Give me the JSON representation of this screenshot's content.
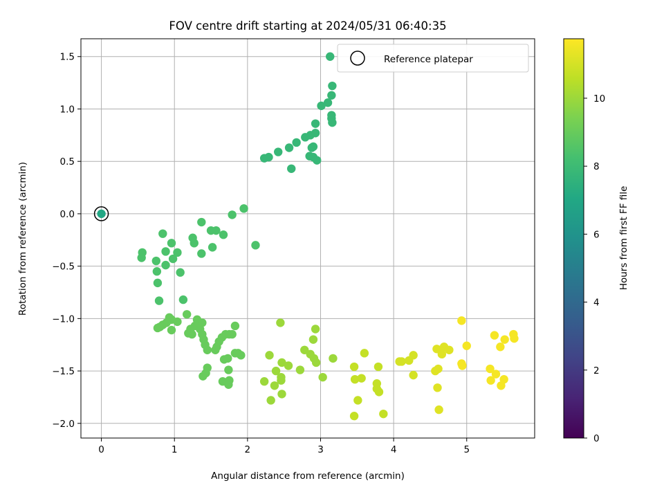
{
  "chart_data": {
    "type": "scatter",
    "title": "FOV centre drift starting at 2024/05/31 06:40:35",
    "xlabel": "Angular distance from reference (arcmin)",
    "ylabel": "Rotation from reference (arcmin)",
    "xlim": [
      -0.28,
      5.93
    ],
    "ylim": [
      -2.14,
      1.67
    ],
    "x_ticks": [
      0,
      1,
      2,
      3,
      4,
      5
    ],
    "y_ticks": [
      -2.0,
      -1.5,
      -1.0,
      -0.5,
      0.0,
      0.5,
      1.0,
      1.5
    ],
    "x_tick_labels": [
      "0",
      "1",
      "2",
      "3",
      "4",
      "5"
    ],
    "y_tick_labels": [
      "−2.0",
      "−1.5",
      "−1.0",
      "−0.5",
      "0.0",
      "0.5",
      "1.0",
      "1.5"
    ],
    "grid": true,
    "legend": {
      "position": "upper right",
      "entries": [
        "Reference platepar"
      ]
    },
    "reference_point": {
      "x": 0,
      "y": 0
    },
    "colorbar": {
      "label": "Hours from first FF file",
      "colormap": "viridis",
      "min": 0,
      "max": 11.75,
      "ticks": [
        0,
        2,
        4,
        6,
        8,
        10
      ],
      "tick_labels": [
        "0",
        "2",
        "4",
        "6",
        "8",
        "10"
      ]
    },
    "points": [
      {
        "x": 0.0,
        "y": 0.0,
        "h": 7.0
      },
      {
        "x": 3.13,
        "y": 1.5,
        "h": 7.8
      },
      {
        "x": 3.16,
        "y": 1.22,
        "h": 7.8
      },
      {
        "x": 3.15,
        "y": 1.13,
        "h": 7.8
      },
      {
        "x": 3.1,
        "y": 1.06,
        "h": 7.8
      },
      {
        "x": 3.01,
        "y": 1.03,
        "h": 7.8
      },
      {
        "x": 3.15,
        "y": 0.94,
        "h": 7.8
      },
      {
        "x": 3.15,
        "y": 0.91,
        "h": 7.8
      },
      {
        "x": 3.16,
        "y": 0.87,
        "h": 7.8
      },
      {
        "x": 2.93,
        "y": 0.86,
        "h": 7.8
      },
      {
        "x": 2.93,
        "y": 0.77,
        "h": 7.8
      },
      {
        "x": 2.86,
        "y": 0.75,
        "h": 7.8
      },
      {
        "x": 2.79,
        "y": 0.73,
        "h": 7.8
      },
      {
        "x": 2.67,
        "y": 0.68,
        "h": 7.8
      },
      {
        "x": 2.57,
        "y": 0.63,
        "h": 7.8
      },
      {
        "x": 2.88,
        "y": 0.63,
        "h": 7.8
      },
      {
        "x": 2.9,
        "y": 0.64,
        "h": 7.8
      },
      {
        "x": 2.42,
        "y": 0.59,
        "h": 7.8
      },
      {
        "x": 2.85,
        "y": 0.55,
        "h": 7.8
      },
      {
        "x": 2.9,
        "y": 0.54,
        "h": 7.8
      },
      {
        "x": 2.95,
        "y": 0.51,
        "h": 7.8
      },
      {
        "x": 2.29,
        "y": 0.54,
        "h": 7.8
      },
      {
        "x": 2.23,
        "y": 0.53,
        "h": 7.8
      },
      {
        "x": 2.6,
        "y": 0.43,
        "h": 7.8
      },
      {
        "x": 1.95,
        "y": 0.05,
        "h": 8.4
      },
      {
        "x": 1.79,
        "y": -0.01,
        "h": 8.4
      },
      {
        "x": 2.11,
        "y": -0.3,
        "h": 8.4
      },
      {
        "x": 1.37,
        "y": -0.08,
        "h": 8.4
      },
      {
        "x": 1.5,
        "y": -0.16,
        "h": 8.4
      },
      {
        "x": 1.57,
        "y": -0.16,
        "h": 8.4
      },
      {
        "x": 1.67,
        "y": -0.2,
        "h": 8.4
      },
      {
        "x": 1.52,
        "y": -0.32,
        "h": 8.4
      },
      {
        "x": 1.25,
        "y": -0.23,
        "h": 8.4
      },
      {
        "x": 1.27,
        "y": -0.28,
        "h": 8.4
      },
      {
        "x": 1.37,
        "y": -0.38,
        "h": 8.4
      },
      {
        "x": 0.84,
        "y": -0.19,
        "h": 8.4
      },
      {
        "x": 0.96,
        "y": -0.28,
        "h": 8.4
      },
      {
        "x": 0.88,
        "y": -0.36,
        "h": 8.4
      },
      {
        "x": 1.04,
        "y": -0.37,
        "h": 8.4
      },
      {
        "x": 0.98,
        "y": -0.43,
        "h": 8.4
      },
      {
        "x": 0.56,
        "y": -0.37,
        "h": 8.4
      },
      {
        "x": 0.55,
        "y": -0.42,
        "h": 8.4
      },
      {
        "x": 0.75,
        "y": -0.45,
        "h": 8.4
      },
      {
        "x": 0.88,
        "y": -0.49,
        "h": 8.4
      },
      {
        "x": 0.76,
        "y": -0.55,
        "h": 8.4
      },
      {
        "x": 1.08,
        "y": -0.56,
        "h": 8.4
      },
      {
        "x": 0.77,
        "y": -0.66,
        "h": 8.4
      },
      {
        "x": 1.12,
        "y": -0.82,
        "h": 8.4
      },
      {
        "x": 0.79,
        "y": -0.83,
        "h": 8.4
      },
      {
        "x": 1.17,
        "y": -0.96,
        "h": 9.0
      },
      {
        "x": 0.93,
        "y": -0.99,
        "h": 9.0
      },
      {
        "x": 0.96,
        "y": -1.01,
        "h": 9.0
      },
      {
        "x": 0.89,
        "y": -1.04,
        "h": 9.0
      },
      {
        "x": 1.04,
        "y": -1.03,
        "h": 9.0
      },
      {
        "x": 0.84,
        "y": -1.06,
        "h": 9.0
      },
      {
        "x": 0.8,
        "y": -1.08,
        "h": 9.0
      },
      {
        "x": 0.77,
        "y": -1.09,
        "h": 9.0
      },
      {
        "x": 0.96,
        "y": -1.11,
        "h": 9.0
      },
      {
        "x": 1.31,
        "y": -1.01,
        "h": 9.0
      },
      {
        "x": 1.38,
        "y": -1.04,
        "h": 9.0
      },
      {
        "x": 1.28,
        "y": -1.07,
        "h": 9.0
      },
      {
        "x": 1.22,
        "y": -1.1,
        "h": 9.0
      },
      {
        "x": 1.35,
        "y": -1.1,
        "h": 9.0
      },
      {
        "x": 1.19,
        "y": -1.14,
        "h": 9.0
      },
      {
        "x": 1.24,
        "y": -1.15,
        "h": 9.0
      },
      {
        "x": 1.38,
        "y": -1.15,
        "h": 9.0
      },
      {
        "x": 1.4,
        "y": -1.2,
        "h": 9.0
      },
      {
        "x": 1.42,
        "y": -1.25,
        "h": 9.0
      },
      {
        "x": 1.45,
        "y": -1.3,
        "h": 9.0
      },
      {
        "x": 1.56,
        "y": -1.3,
        "h": 9.0
      },
      {
        "x": 1.58,
        "y": -1.27,
        "h": 9.0
      },
      {
        "x": 1.61,
        "y": -1.22,
        "h": 9.0
      },
      {
        "x": 1.65,
        "y": -1.18,
        "h": 9.0
      },
      {
        "x": 1.7,
        "y": -1.15,
        "h": 9.0
      },
      {
        "x": 1.75,
        "y": -1.15,
        "h": 9.0
      },
      {
        "x": 1.79,
        "y": -1.15,
        "h": 9.0
      },
      {
        "x": 1.83,
        "y": -1.07,
        "h": 9.0
      },
      {
        "x": 1.73,
        "y": -1.38,
        "h": 9.0
      },
      {
        "x": 1.68,
        "y": -1.39,
        "h": 9.0
      },
      {
        "x": 1.83,
        "y": -1.33,
        "h": 9.0
      },
      {
        "x": 1.87,
        "y": -1.33,
        "h": 9.0
      },
      {
        "x": 1.91,
        "y": -1.35,
        "h": 9.0
      },
      {
        "x": 1.45,
        "y": -1.47,
        "h": 9.0
      },
      {
        "x": 1.43,
        "y": -1.52,
        "h": 9.0
      },
      {
        "x": 1.39,
        "y": -1.55,
        "h": 9.0
      },
      {
        "x": 1.74,
        "y": -1.49,
        "h": 9.0
      },
      {
        "x": 1.66,
        "y": -1.6,
        "h": 9.0
      },
      {
        "x": 1.75,
        "y": -1.59,
        "h": 9.0
      },
      {
        "x": 1.74,
        "y": -1.63,
        "h": 9.0
      },
      {
        "x": 2.45,
        "y": -1.04,
        "h": 10.0
      },
      {
        "x": 2.3,
        "y": -1.35,
        "h": 10.0
      },
      {
        "x": 2.47,
        "y": -1.42,
        "h": 10.0
      },
      {
        "x": 2.56,
        "y": -1.45,
        "h": 10.0
      },
      {
        "x": 2.39,
        "y": -1.5,
        "h": 10.0
      },
      {
        "x": 2.46,
        "y": -1.56,
        "h": 10.0
      },
      {
        "x": 2.46,
        "y": -1.59,
        "h": 10.0
      },
      {
        "x": 2.23,
        "y": -1.6,
        "h": 10.0
      },
      {
        "x": 2.37,
        "y": -1.64,
        "h": 10.0
      },
      {
        "x": 2.47,
        "y": -1.72,
        "h": 10.0
      },
      {
        "x": 2.32,
        "y": -1.78,
        "h": 10.0
      },
      {
        "x": 2.72,
        "y": -1.49,
        "h": 10.0
      },
      {
        "x": 2.93,
        "y": -1.1,
        "h": 10.0
      },
      {
        "x": 2.9,
        "y": -1.2,
        "h": 10.0
      },
      {
        "x": 2.78,
        "y": -1.3,
        "h": 10.0
      },
      {
        "x": 2.86,
        "y": -1.34,
        "h": 10.0
      },
      {
        "x": 2.91,
        "y": -1.38,
        "h": 10.0
      },
      {
        "x": 2.94,
        "y": -1.42,
        "h": 10.0
      },
      {
        "x": 3.17,
        "y": -1.38,
        "h": 10.0
      },
      {
        "x": 3.03,
        "y": -1.56,
        "h": 10.0
      },
      {
        "x": 3.6,
        "y": -1.33,
        "h": 10.7
      },
      {
        "x": 3.46,
        "y": -1.46,
        "h": 10.7
      },
      {
        "x": 3.47,
        "y": -1.58,
        "h": 10.7
      },
      {
        "x": 3.56,
        "y": -1.57,
        "h": 10.7
      },
      {
        "x": 3.79,
        "y": -1.46,
        "h": 10.7
      },
      {
        "x": 3.77,
        "y": -1.62,
        "h": 10.7
      },
      {
        "x": 3.77,
        "y": -1.67,
        "h": 10.7
      },
      {
        "x": 3.8,
        "y": -1.7,
        "h": 10.7
      },
      {
        "x": 3.51,
        "y": -1.78,
        "h": 10.7
      },
      {
        "x": 3.46,
        "y": -1.93,
        "h": 10.7
      },
      {
        "x": 3.86,
        "y": -1.91,
        "h": 10.7
      },
      {
        "x": 4.08,
        "y": -1.41,
        "h": 11.0
      },
      {
        "x": 4.11,
        "y": -1.41,
        "h": 11.0
      },
      {
        "x": 4.21,
        "y": -1.4,
        "h": 11.0
      },
      {
        "x": 4.27,
        "y": -1.35,
        "h": 11.0
      },
      {
        "x": 4.27,
        "y": -1.54,
        "h": 11.0
      },
      {
        "x": 4.59,
        "y": -1.29,
        "h": 11.2
      },
      {
        "x": 4.69,
        "y": -1.27,
        "h": 11.2
      },
      {
        "x": 4.64,
        "y": -1.3,
        "h": 11.2
      },
      {
        "x": 4.76,
        "y": -1.3,
        "h": 11.2
      },
      {
        "x": 4.66,
        "y": -1.34,
        "h": 11.2
      },
      {
        "x": 4.57,
        "y": -1.5,
        "h": 11.2
      },
      {
        "x": 4.61,
        "y": -1.48,
        "h": 11.2
      },
      {
        "x": 4.6,
        "y": -1.66,
        "h": 11.2
      },
      {
        "x": 4.62,
        "y": -1.87,
        "h": 11.2
      },
      {
        "x": 4.93,
        "y": -1.02,
        "h": 11.6
      },
      {
        "x": 5.0,
        "y": -1.26,
        "h": 11.6
      },
      {
        "x": 4.93,
        "y": -1.43,
        "h": 11.6
      },
      {
        "x": 4.94,
        "y": -1.45,
        "h": 11.6
      },
      {
        "x": 5.38,
        "y": -1.16,
        "h": 11.6
      },
      {
        "x": 5.52,
        "y": -1.2,
        "h": 11.6
      },
      {
        "x": 5.64,
        "y": -1.15,
        "h": 11.6
      },
      {
        "x": 5.65,
        "y": -1.19,
        "h": 11.6
      },
      {
        "x": 5.46,
        "y": -1.27,
        "h": 11.6
      },
      {
        "x": 5.32,
        "y": -1.48,
        "h": 11.6
      },
      {
        "x": 5.4,
        "y": -1.53,
        "h": 11.6
      },
      {
        "x": 5.33,
        "y": -1.59,
        "h": 11.6
      },
      {
        "x": 5.51,
        "y": -1.58,
        "h": 11.6
      },
      {
        "x": 5.47,
        "y": -1.64,
        "h": 11.6
      }
    ]
  }
}
